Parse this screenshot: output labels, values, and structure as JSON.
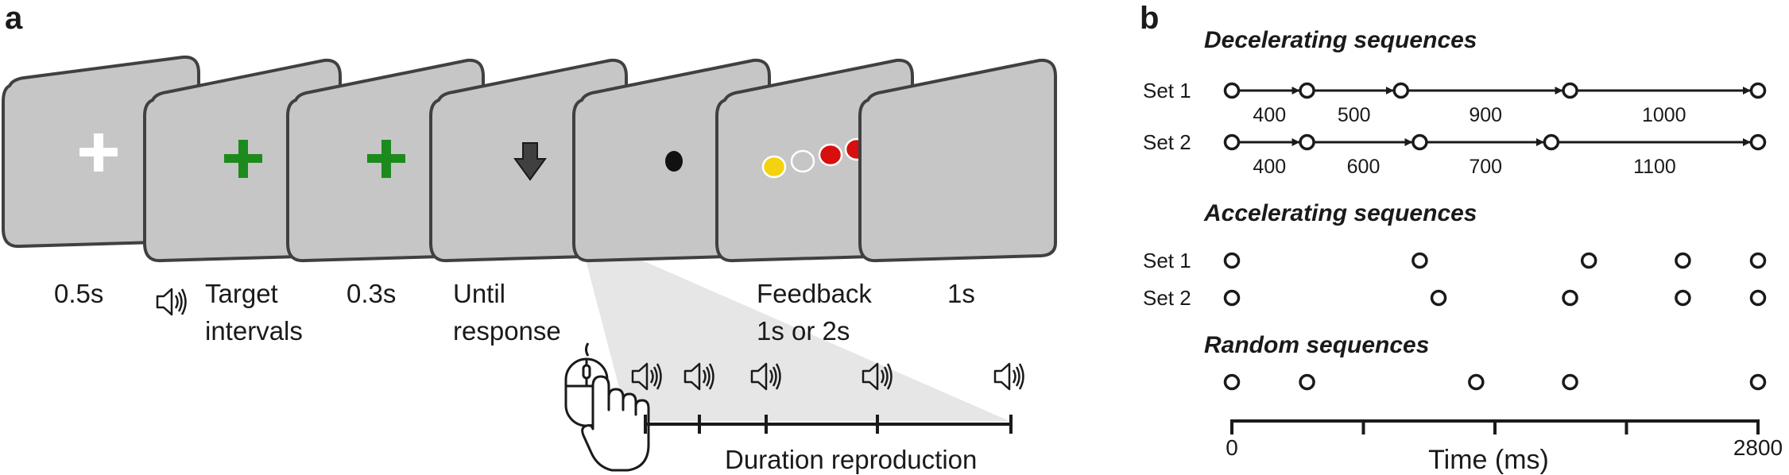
{
  "panel_a": {
    "letter": "a",
    "captions": {
      "fixation": "0.5s",
      "target_line1": "Target",
      "target_line2": "intervals",
      "cue": "0.3s",
      "response_line1": "Until",
      "response_line2": "response",
      "feedback_line1": "Feedback",
      "feedback_line2": "1s or 2s",
      "iti": "1s"
    },
    "reproduction_label": "Duration reproduction",
    "colors": {
      "screen_fill": "#c6c6c6",
      "screen_border": "#404040",
      "fixation_white": "#ffffff",
      "fixation_green": "#1d8a1d",
      "feedback_yellow": "#f4d20f",
      "feedback_red": "#d80f0f",
      "projection": "#e6e6e6"
    },
    "icons": [
      "speaker-icon",
      "mouse-icon",
      "hand-icon",
      "arrow-down-icon"
    ]
  },
  "panel_b": {
    "letter": "b",
    "time_axis": {
      "label": "Time (ms)",
      "min_label": "0",
      "max_label": "2800",
      "range": [
        0,
        2800
      ]
    },
    "groups": [
      {
        "heading": "Decelerating sequences",
        "sets": [
          {
            "label": "Set 1",
            "intervals": [
              400,
              500,
              900,
              1000
            ],
            "labels": [
              "400",
              "500",
              "900",
              "1000"
            ]
          },
          {
            "label": "Set 2",
            "intervals": [
              400,
              600,
              700,
              1100
            ],
            "labels": [
              "400",
              "600",
              "700",
              "1100"
            ]
          }
        ]
      },
      {
        "heading": "Accelerating sequences",
        "sets": [
          {
            "label": "Set 1",
            "intervals": [
              1000,
              900,
              500,
              400
            ]
          },
          {
            "label": "Set 2",
            "intervals": [
              1100,
              700,
              600,
              400
            ]
          }
        ]
      },
      {
        "heading": "Random sequences",
        "sets": [
          {
            "label": "",
            "intervals": [
              400,
              900,
              500,
              1000
            ]
          }
        ]
      }
    ]
  }
}
